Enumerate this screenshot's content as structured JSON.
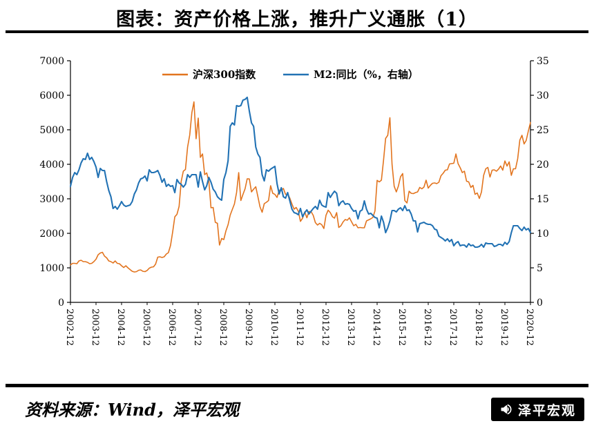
{
  "title": "图表：资产价格上涨，推升广义通胀（1）",
  "source_note": "资料来源：Wind，泽平宏观",
  "logo": {
    "text": "泽平宏观",
    "icon": "megaphone-icon",
    "bg": "#000000",
    "fg": "#ffffff"
  },
  "chart_data": {
    "type": "line",
    "title": "图表：资产价格上涨，推升广义通胀（1）",
    "x_unit": "month",
    "x_start": "2002-12",
    "x_end": "2020-12",
    "x_tick_every": 12,
    "x_tick_labels": [
      "2002-12",
      "2003-12",
      "2004-12",
      "2005-12",
      "2006-12",
      "2007-12",
      "2008-12",
      "2009-12",
      "2010-12",
      "2011-12",
      "2012-12",
      "2013-12",
      "2014-12",
      "2015-12",
      "2016-12",
      "2017-12",
      "2018-12",
      "2019-12",
      "2020-12"
    ],
    "grid": false,
    "legend_position": "top-center",
    "left_axis": {
      "min": 0,
      "max": 7000,
      "tick_step": 1000,
      "ticks": [
        0,
        1000,
        2000,
        3000,
        4000,
        5000,
        6000,
        7000
      ]
    },
    "right_axis": {
      "min": 0,
      "max": 35,
      "tick_step": 5,
      "ticks": [
        0,
        5,
        10,
        15,
        20,
        25,
        30,
        35
      ]
    },
    "series": [
      {
        "name": "沪深300指数",
        "axis": "left",
        "color": "#E2741E",
        "values": [
          1086,
          1130,
          1130,
          1120,
          1200,
          1220,
          1180,
          1180,
          1160,
          1120,
          1130,
          1180,
          1250,
          1380,
          1430,
          1450,
          1340,
          1290,
          1200,
          1180,
          1140,
          1200,
          1130,
          1120,
          1060,
          1010,
          1060,
          1000,
          950,
          900,
          880,
          890,
          930,
          940,
          900,
          890,
          924,
          990,
          1020,
          1030,
          1110,
          1310,
          1320,
          1300,
          1320,
          1400,
          1440,
          1650,
          2041,
          2480,
          2550,
          2780,
          3500,
          3800,
          3850,
          4500,
          4850,
          5500,
          5810,
          4740,
          5338,
          4200,
          4300,
          3700,
          3750,
          3500,
          2740,
          2750,
          2320,
          2290,
          1660,
          1850,
          1817,
          2070,
          2250,
          2530,
          2690,
          2850,
          3180,
          3760,
          2950,
          3130,
          3290,
          3580,
          3576,
          3200,
          3280,
          3350,
          3070,
          2770,
          2610,
          2860,
          2900,
          2950,
          3380,
          3160,
          3128,
          3040,
          3250,
          3250,
          3300,
          3130,
          3140,
          3020,
          2850,
          2700,
          2750,
          2640,
          2346,
          2440,
          2620,
          2450,
          2630,
          2630,
          2520,
          2310,
          2240,
          2290,
          2250,
          2140,
          2523,
          2670,
          2600,
          2480,
          2440,
          2600,
          2170,
          2220,
          2330,
          2400,
          2380,
          2450,
          2331,
          2220,
          2260,
          2160,
          2170,
          2160,
          2160,
          2360,
          2390,
          2420,
          2460,
          2650,
          3534,
          3490,
          3540,
          4120,
          4750,
          4840,
          5350,
          4000,
          3365,
          3200,
          3370,
          3640,
          3731,
          2950,
          2880,
          3220,
          3160,
          3150,
          3180,
          3200,
          3330,
          3290,
          3340,
          3540,
          3310,
          3390,
          3450,
          3460,
          3440,
          3480,
          3670,
          3740,
          3830,
          3840,
          4010,
          4020,
          4030,
          4300,
          4020,
          3900,
          3760,
          3800,
          3510,
          3490,
          3330,
          3390,
          3130,
          3170,
          3010,
          3200,
          3680,
          3870,
          3910,
          3630,
          3830,
          3840,
          3800,
          3860,
          3950,
          3830,
          4097,
          3950,
          4070,
          3680,
          3870,
          3870,
          4160,
          4700,
          4840,
          4590,
          4690,
          4960,
          5211
        ]
      },
      {
        "name": "M2:同比（%，右轴）",
        "axis": "right",
        "color": "#2272B4",
        "values": [
          16.8,
          18.1,
          18.8,
          18.5,
          19.2,
          20.2,
          20.8,
          20.7,
          21.6,
          20.7,
          21.0,
          20.4,
          19.6,
          18.1,
          19.4,
          19.1,
          19.1,
          17.5,
          16.2,
          15.3,
          13.6,
          13.9,
          13.5,
          14.0,
          14.6,
          14.1,
          13.9,
          14.0,
          14.1,
          14.6,
          15.7,
          16.3,
          17.3,
          17.9,
          18.0,
          18.3,
          17.6,
          19.2,
          18.8,
          18.8,
          18.9,
          19.1,
          18.4,
          17.4,
          17.9,
          16.8,
          17.1,
          16.8,
          16.9,
          15.9,
          17.8,
          17.3,
          17.1,
          16.7,
          17.1,
          18.5,
          18.1,
          18.5,
          18.5,
          18.5,
          16.7,
          18.9,
          17.5,
          16.3,
          16.9,
          18.1,
          17.4,
          16.4,
          16.0,
          15.3,
          15.0,
          14.8,
          17.8,
          18.8,
          20.5,
          25.5,
          26.0,
          25.7,
          28.5,
          28.4,
          28.5,
          29.3,
          29.4,
          29.7,
          27.7,
          26.0,
          25.5,
          22.5,
          21.5,
          21.0,
          18.5,
          17.6,
          19.2,
          19.0,
          19.3,
          19.5,
          19.7,
          17.2,
          15.7,
          16.6,
          15.3,
          15.1,
          15.9,
          14.7,
          13.5,
          13.0,
          12.9,
          12.7,
          13.6,
          12.4,
          13.0,
          13.4,
          12.8,
          13.2,
          13.6,
          13.9,
          13.5,
          14.8,
          14.1,
          13.9,
          13.8,
          15.9,
          15.2,
          15.7,
          16.1,
          15.8,
          14.0,
          14.5,
          14.7,
          14.2,
          14.3,
          14.2,
          13.6,
          13.2,
          13.3,
          12.1,
          13.2,
          13.4,
          14.7,
          13.5,
          12.8,
          12.9,
          12.6,
          12.3,
          12.2,
          10.8,
          12.5,
          11.6,
          10.1,
          10.8,
          11.8,
          13.3,
          13.3,
          13.1,
          13.5,
          13.7,
          13.3,
          14.0,
          13.3,
          13.4,
          12.8,
          11.8,
          11.8,
          10.2,
          11.4,
          11.5,
          11.6,
          11.4,
          11.3,
          11.3,
          11.1,
          10.6,
          10.5,
          9.6,
          9.4,
          9.2,
          8.9,
          9.2,
          8.8,
          9.1,
          8.2,
          8.6,
          8.8,
          8.2,
          8.3,
          8.3,
          8.0,
          8.5,
          8.2,
          8.3,
          8.0,
          8.0,
          8.1,
          8.4,
          8.0,
          8.6,
          8.5,
          8.5,
          8.5,
          8.1,
          8.2,
          8.4,
          8.4,
          8.2,
          8.7,
          8.4,
          8.8,
          10.1,
          11.1,
          11.1,
          11.1,
          10.7,
          10.4,
          10.9,
          10.5,
          10.7,
          10.1
        ]
      }
    ]
  }
}
